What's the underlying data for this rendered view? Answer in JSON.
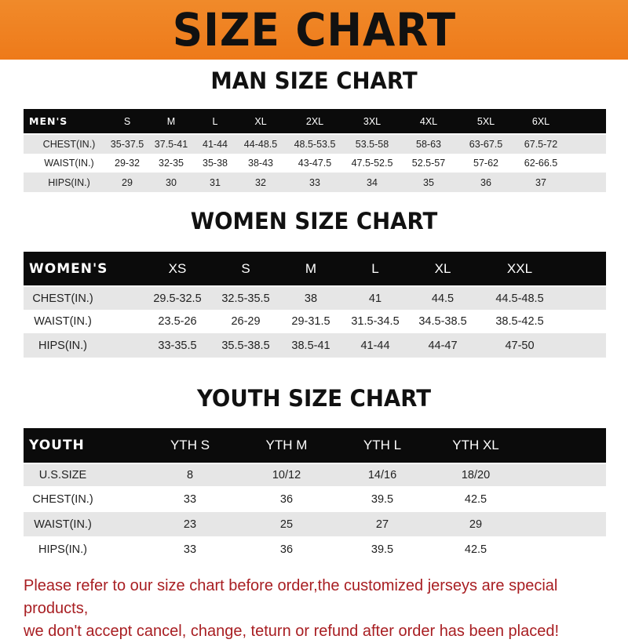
{
  "banner_title": "SIZE CHART",
  "men": {
    "title": "MAN SIZE CHART",
    "header": [
      "MEN'S",
      "S",
      "M",
      "L",
      "XL",
      "2XL",
      "3XL",
      "4XL",
      "5XL",
      "6XL"
    ],
    "rows": [
      [
        "CHEST(IN.)",
        "35-37.5",
        "37.5-41",
        "41-44",
        "44-48.5",
        "48.5-53.5",
        "53.5-58",
        "58-63",
        "63-67.5",
        "67.5-72"
      ],
      [
        "WAIST(IN.)",
        "29-32",
        "32-35",
        "35-38",
        "38-43",
        "43-47.5",
        "47.5-52.5",
        "52.5-57",
        "57-62",
        "62-66.5"
      ],
      [
        "HIPS(IN.)",
        "29",
        "30",
        "31",
        "32",
        "33",
        "34",
        "35",
        "36",
        "37"
      ]
    ]
  },
  "women": {
    "title": "WOMEN SIZE CHART",
    "header": [
      "WOMEN'S",
      "XS",
      "S",
      "M",
      "L",
      "XL",
      "XXL"
    ],
    "rows": [
      [
        "CHEST(IN.)",
        "29.5-32.5",
        "32.5-35.5",
        "38",
        "41",
        "44.5",
        "44.5-48.5"
      ],
      [
        "WAIST(IN.)",
        "23.5-26",
        "26-29",
        "29-31.5",
        "31.5-34.5",
        "34.5-38.5",
        "38.5-42.5"
      ],
      [
        "HIPS(IN.)",
        "33-35.5",
        "35.5-38.5",
        "38.5-41",
        "41-44",
        "44-47",
        "47-50"
      ]
    ]
  },
  "youth": {
    "title": "YOUTH SIZE CHART",
    "header": [
      "YOUTH",
      "YTH S",
      "YTH M",
      "YTH L",
      "YTH XL"
    ],
    "rows": [
      [
        "U.S.SIZE",
        "8",
        "10/12",
        "14/16",
        "18/20"
      ],
      [
        "CHEST(IN.)",
        "33",
        "36",
        "39.5",
        "42.5"
      ],
      [
        "WAIST(IN.)",
        "23",
        "25",
        "27",
        "29"
      ],
      [
        "HIPS(IN.)",
        "33",
        "36",
        "39.5",
        "42.5"
      ]
    ]
  },
  "notice": {
    "line1": "Please refer to our size chart before order,the customized jerseys are special products,",
    "line2": "we don't accept cancel, change, teturn or refund after order has been placed!"
  },
  "colors": {
    "banner": "#ef8322",
    "header_bg": "#0b0b0b",
    "stripe": "#e6e6e6",
    "notice": "#a81e22"
  }
}
